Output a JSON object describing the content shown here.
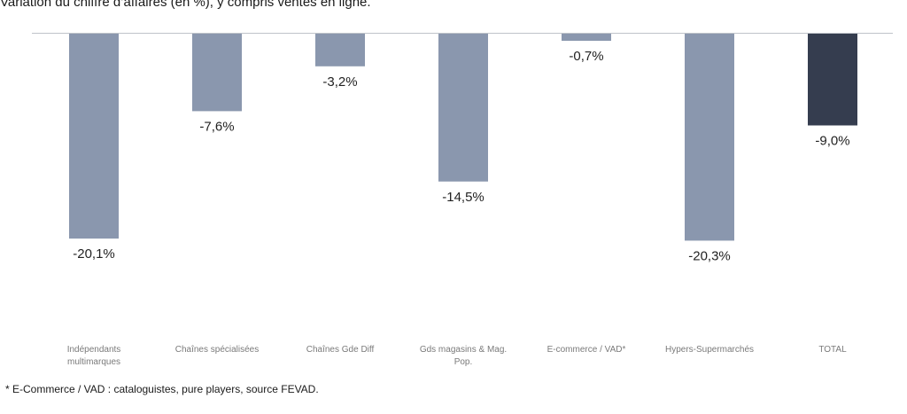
{
  "chart_data": {
    "type": "bar",
    "title": "Variation du chiffre d’affaires (en %), y compris ventes en ligne.",
    "categories": [
      [
        "Indépendants",
        "multimarques"
      ],
      [
        "Chaînes spécialisées"
      ],
      [
        "Chaînes Gde Diff"
      ],
      [
        "Gds magasins & Mag.",
        "Pop."
      ],
      [
        "E-commerce / VAD*"
      ],
      [
        "Hypers-Supermarchés"
      ],
      [
        "TOTAL"
      ]
    ],
    "values": [
      -20.1,
      -7.6,
      -3.2,
      -14.5,
      -0.7,
      -20.3,
      -9.0
    ],
    "data_labels": [
      "-20,1%",
      "-7,6%",
      "-3,2%",
      "-14,5%",
      "-0,7%",
      "-20,3%",
      "-9,0%"
    ],
    "bar_colors": [
      "#8a97ae",
      "#8a97ae",
      "#8a97ae",
      "#8a97ae",
      "#8a97ae",
      "#8a97ae",
      "#353d4f"
    ],
    "ylim": [
      -20.3,
      0
    ],
    "grid": false,
    "legend": "none",
    "footnote": "* E-Commerce / VAD : cataloguistes, pure players, source FEVAD."
  }
}
